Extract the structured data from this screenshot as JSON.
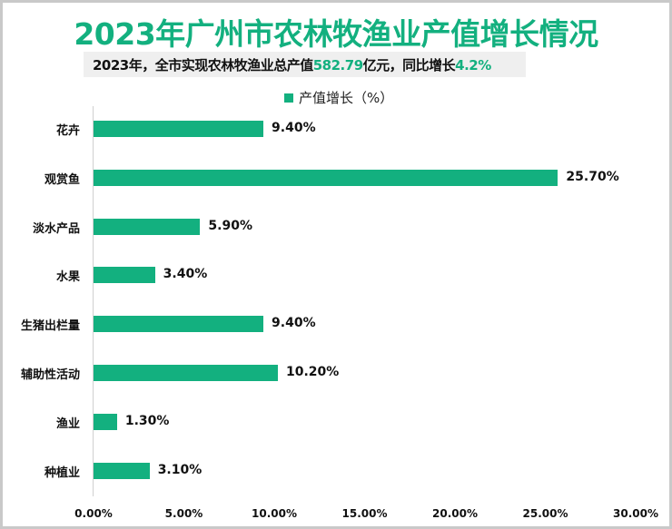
{
  "title": "2023年广州市农林牧渔业产值增长情况",
  "subtitle": {
    "prefix": "2023年，全市实现农林牧渔业总产值",
    "value1": "582.79",
    "middle": "亿元，同比增长",
    "value2": "4.2%"
  },
  "legend": {
    "label": "产值增长（%）",
    "color": "#13b07f"
  },
  "colors": {
    "bar": "#13b07f",
    "title": "#13b07f",
    "subtitle_bg": "#efefef",
    "axis": "#d0d0d0"
  },
  "axis": {
    "ticks": [
      "0.00%",
      "5.00%",
      "10.00%",
      "15.00%",
      "20.00%",
      "25.00%",
      "30.00%"
    ]
  },
  "bars": [
    {
      "label": "花卉",
      "value": 9.4,
      "value_label": "9.40%"
    },
    {
      "label": "观赏鱼",
      "value": 25.7,
      "value_label": "25.70%"
    },
    {
      "label": "淡水产品",
      "value": 5.9,
      "value_label": "5.90%"
    },
    {
      "label": "水果",
      "value": 3.4,
      "value_label": "3.40%"
    },
    {
      "label": "生猪出栏量",
      "value": 9.4,
      "value_label": "9.40%"
    },
    {
      "label": "辅助性活动",
      "value": 10.2,
      "value_label": "10.20%"
    },
    {
      "label": "渔业",
      "value": 1.3,
      "value_label": "1.30%"
    },
    {
      "label": "种植业",
      "value": 3.1,
      "value_label": "3.10%"
    }
  ],
  "chart_data": {
    "type": "bar",
    "orientation": "horizontal",
    "title": "2023年广州市农林牧渔业产值增长情况",
    "subtitle": "2023年，全市实现农林牧渔业总产值582.79亿元，同比增长4.2%",
    "categories": [
      "花卉",
      "观赏鱼",
      "淡水产品",
      "水果",
      "生猪出栏量",
      "辅助性活动",
      "渔业",
      "种植业"
    ],
    "series": [
      {
        "name": "产值增长（%）",
        "values": [
          9.4,
          25.7,
          5.9,
          3.4,
          9.4,
          10.2,
          1.3,
          3.1
        ]
      }
    ],
    "data_labels": [
      "9.40%",
      "25.70%",
      "5.90%",
      "3.40%",
      "9.40%",
      "10.20%",
      "1.30%",
      "3.10%"
    ],
    "xlabel": "",
    "ylabel": "",
    "xlim": [
      0,
      30
    ],
    "x_ticks": [
      "0.00%",
      "5.00%",
      "10.00%",
      "15.00%",
      "20.00%",
      "25.00%",
      "30.00%"
    ],
    "grid": false,
    "legend_position": "top"
  }
}
